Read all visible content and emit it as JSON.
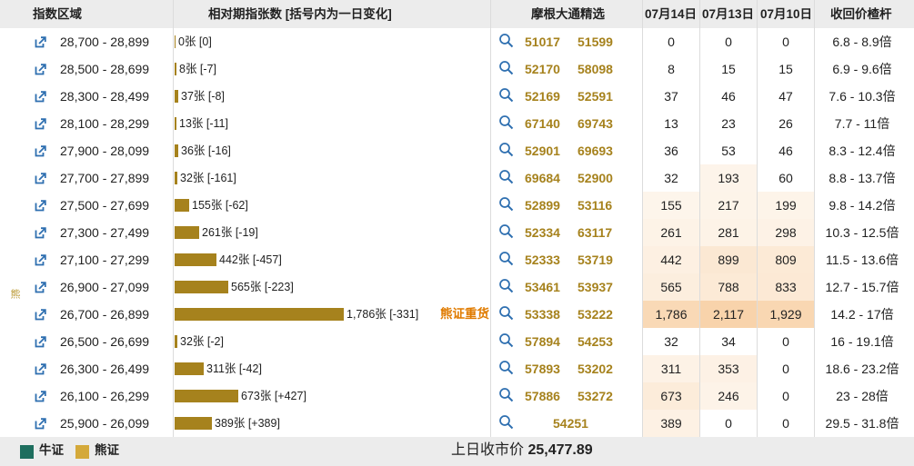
{
  "header": {
    "col_range": "指数区域",
    "col_relative": "相对期指张数 [括号内为一日变化]",
    "col_picks": "摩根大通精选",
    "col_d1": "07月14日",
    "col_d2": "07月13日",
    "col_d3": "07月10日",
    "col_recall": "收回价楂杆"
  },
  "side_label": "熊",
  "bear_tag": "熊证重货",
  "rows": [
    {
      "range": "28,700 - 28,899",
      "count": 0,
      "bar_label": "0张 [0]",
      "codes": [
        "51017",
        "51599"
      ],
      "d1": "0",
      "d2": "0",
      "d3": "0",
      "recall": "6.8 - 8.9倍"
    },
    {
      "range": "28,500 - 28,699",
      "count": 8,
      "bar_label": "8张 [-7]",
      "codes": [
        "52170",
        "58098"
      ],
      "d1": "8",
      "d2": "15",
      "d3": "15",
      "recall": "6.9 - 9.6倍"
    },
    {
      "range": "28,300 - 28,499",
      "count": 37,
      "bar_label": "37张 [-8]",
      "codes": [
        "52169",
        "52591"
      ],
      "d1": "37",
      "d2": "46",
      "d3": "47",
      "recall": "7.6 - 10.3倍"
    },
    {
      "range": "28,100 - 28,299",
      "count": 13,
      "bar_label": "13张 [-11]",
      "codes": [
        "67140",
        "69743"
      ],
      "d1": "13",
      "d2": "23",
      "d3": "26",
      "recall": "7.7 - 11倍"
    },
    {
      "range": "27,900 - 28,099",
      "count": 36,
      "bar_label": "36张 [-16]",
      "codes": [
        "52901",
        "69693"
      ],
      "d1": "36",
      "d2": "53",
      "d3": "46",
      "recall": "8.3 - 12.4倍"
    },
    {
      "range": "27,700 - 27,899",
      "count": 32,
      "bar_label": "32张 [-161]",
      "codes": [
        "69684",
        "52900"
      ],
      "d1": "32",
      "d2": "193",
      "d3": "60",
      "recall": "8.8 - 13.7倍"
    },
    {
      "range": "27,500 - 27,699",
      "count": 155,
      "bar_label": "155张 [-62]",
      "codes": [
        "52899",
        "53116"
      ],
      "d1": "155",
      "d2": "217",
      "d3": "199",
      "recall": "9.8 - 14.2倍"
    },
    {
      "range": "27,300 - 27,499",
      "count": 261,
      "bar_label": "261张 [-19]",
      "codes": [
        "52334",
        "63117"
      ],
      "d1": "261",
      "d2": "281",
      "d3": "298",
      "recall": "10.3 - 12.5倍"
    },
    {
      "range": "27,100 - 27,299",
      "count": 442,
      "bar_label": "442张 [-457]",
      "codes": [
        "52333",
        "53719"
      ],
      "d1": "442",
      "d2": "899",
      "d3": "809",
      "recall": "11.5 - 13.6倍"
    },
    {
      "range": "26,900 - 27,099",
      "count": 565,
      "bar_label": "565张 [-223]",
      "codes": [
        "53461",
        "53937"
      ],
      "d1": "565",
      "d2": "788",
      "d3": "833",
      "recall": "12.7 - 15.7倍"
    },
    {
      "range": "26,700 - 26,899",
      "count": 1786,
      "bar_label": "1,786张 [-331]",
      "codes": [
        "53338",
        "53222"
      ],
      "d1": "1,786",
      "d2": "2,117",
      "d3": "1,929",
      "recall": "14.2 - 17倍"
    },
    {
      "range": "26,500 - 26,699",
      "count": 32,
      "bar_label": "32张 [-2]",
      "codes": [
        "57894",
        "54253"
      ],
      "d1": "32",
      "d2": "34",
      "d3": "0",
      "recall": "16 - 19.1倍"
    },
    {
      "range": "26,300 - 26,499",
      "count": 311,
      "bar_label": "311张 [-42]",
      "codes": [
        "57893",
        "53202"
      ],
      "d1": "311",
      "d2": "353",
      "d3": "0",
      "recall": "18.6 - 23.2倍"
    },
    {
      "range": "26,100 - 26,299",
      "count": 673,
      "bar_label": "673张 [+427]",
      "codes": [
        "57886",
        "53272"
      ],
      "d1": "673",
      "d2": "246",
      "d3": "0",
      "recall": "23 - 28倍"
    },
    {
      "range": "25,900 - 26,099",
      "count": 389,
      "bar_label": "389张 [+389]",
      "codes": [
        "54251"
      ],
      "d1": "389",
      "d2": "0",
      "d3": "0",
      "recall": "29.5 - 31.8倍"
    }
  ],
  "legend": {
    "bull_label": "牛证",
    "bull_color": "#1e6e5e",
    "bear_label": "熊证",
    "bear_color": "#d4a93a"
  },
  "footer": {
    "close_label": "上日收市价",
    "close_value": "25,477.89"
  },
  "colors": {
    "bar": "#a6821d",
    "code": "#a6821d",
    "icon": "#2e6fb0"
  }
}
